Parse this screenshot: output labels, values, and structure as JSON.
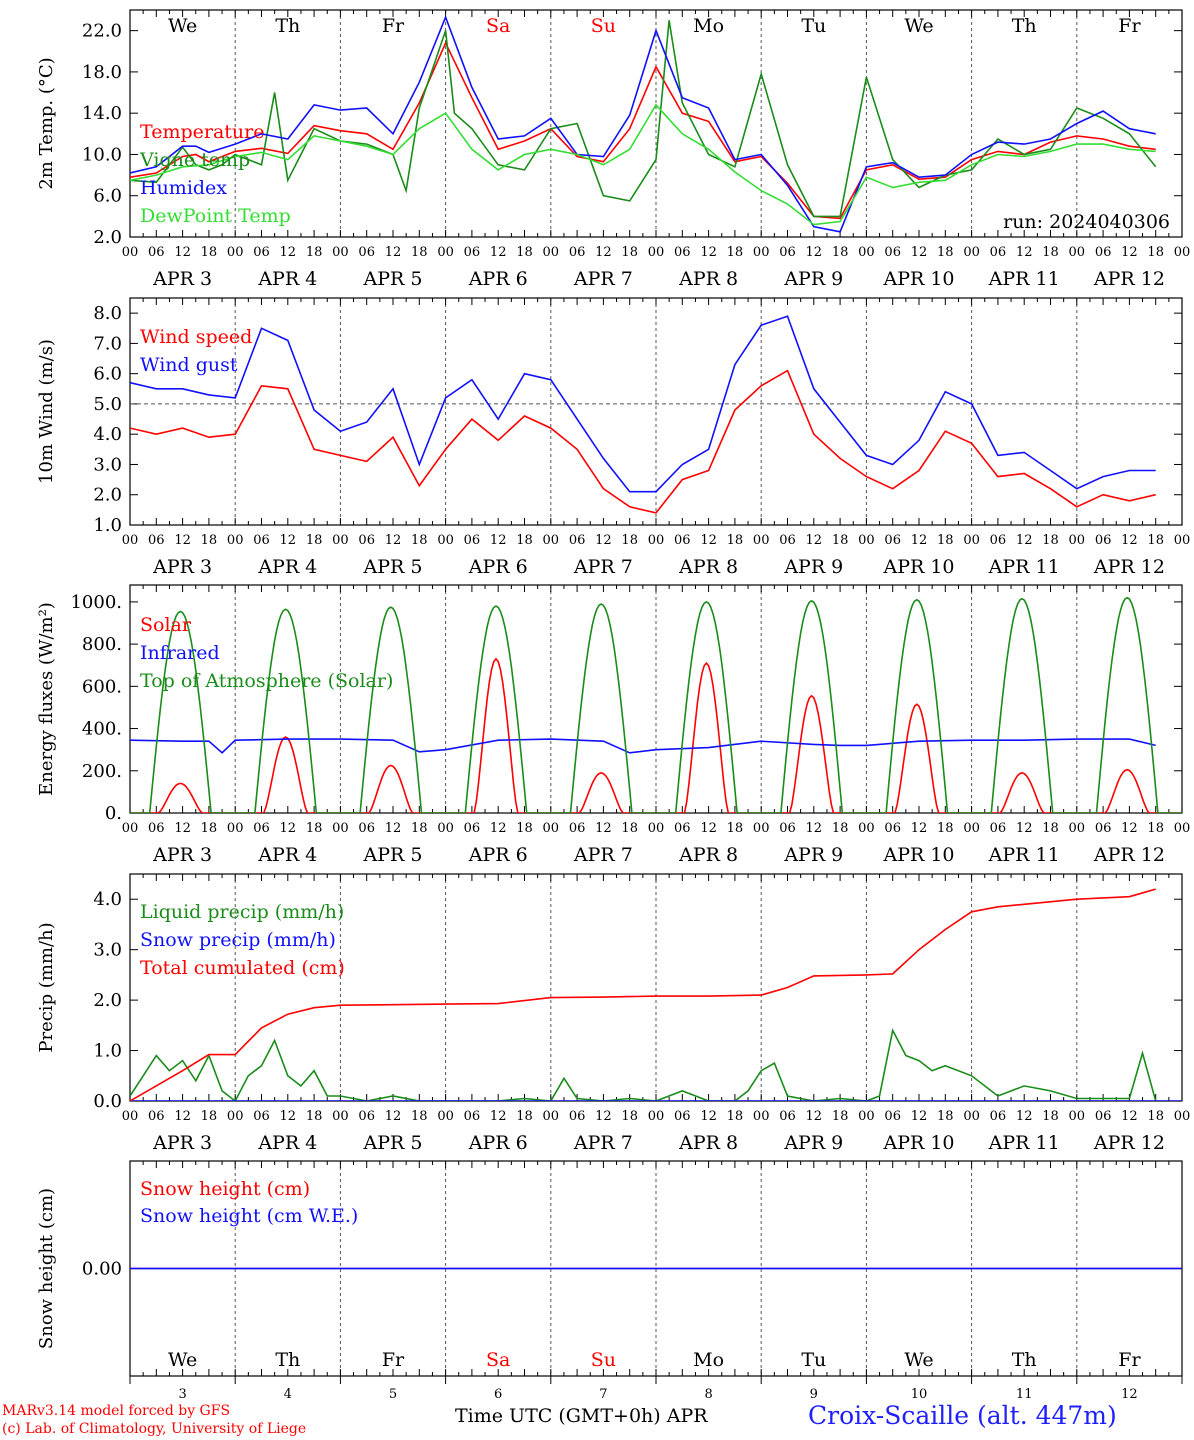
{
  "footer": {
    "model_line": "MARv3.14 model forced by GFS",
    "copyright_line": "(c) Lab. of Climatology, University of Liege",
    "x_axis_title": "Time UTC (GMT+0h) APR",
    "station": "Croix-Scaille (alt. 447m)"
  },
  "days": {
    "weekday_names": [
      "We",
      "Th",
      "Fr",
      "Sa",
      "Su",
      "Mo",
      "Tu",
      "We",
      "Th",
      "Fr"
    ],
    "weekend_color": "#ff0000",
    "weekday_color": "#000000",
    "weekend_indices": [
      3,
      4
    ],
    "date_labels": [
      "APR  3",
      "APR  4",
      "APR  5",
      "APR  6",
      "APR  7",
      "APR  8",
      "APR  9",
      "APR 10",
      "APR 11",
      "APR 12"
    ],
    "bottom_numbers": [
      "3",
      "4",
      "5",
      "6",
      "7",
      "8",
      "9",
      "10",
      "11",
      "12"
    ],
    "hour_ticks": [
      "00",
      "06",
      "12",
      "18"
    ],
    "final_hour_tick": "00"
  },
  "colors": {
    "red": "#ff0000",
    "blue": "#1010ff",
    "dark_green": "#1a8c1a",
    "light_green": "#33dd33",
    "purple": "#800080",
    "grid": "#555555"
  },
  "chart_data": [
    {
      "type": "line",
      "panel": "temperature",
      "ylabel": "2m Temp. (°C)",
      "ylim": [
        2,
        24
      ],
      "yticks": [
        "2.0",
        "6.0",
        "10.0",
        "14.0",
        "18.0",
        "22.0"
      ],
      "annotation": "run: 2024040306",
      "grid": "vertical dotted at day boundaries",
      "x_unit": "hours since 2024-04-03 00 UTC",
      "series": [
        {
          "name": "Temperature",
          "color": "#ff0000",
          "x": [
            0,
            6,
            12,
            15,
            18,
            24,
            30,
            36,
            42,
            48,
            54,
            60,
            66,
            72,
            78,
            84,
            90,
            96,
            102,
            108,
            114,
            120,
            126,
            132,
            138,
            144,
            150,
            156,
            162,
            168,
            174,
            180,
            186,
            192,
            198,
            204,
            210,
            216,
            222,
            228,
            234
          ],
          "values": [
            7.8,
            8.2,
            9.8,
            10.0,
            9.3,
            10.3,
            10.6,
            10.1,
            12.8,
            12.3,
            12.0,
            10.5,
            15.0,
            20.8,
            15.5,
            10.5,
            11.3,
            12.5,
            9.8,
            9.3,
            12.5,
            18.5,
            14.0,
            13.2,
            9.3,
            9.8,
            7.2,
            4.0,
            3.8,
            8.5,
            9.0,
            7.6,
            7.8,
            9.5,
            10.3,
            10.0,
            11.2,
            11.8,
            11.5,
            10.8,
            10.5
          ]
        },
        {
          "name": "Vigne temp",
          "color": "#1a8c1a",
          "x": [
            0,
            6,
            12,
            15,
            18,
            21,
            24,
            30,
            33,
            36,
            39,
            42,
            48,
            54,
            60,
            63,
            66,
            72,
            74,
            78,
            84,
            90,
            96,
            102,
            108,
            114,
            120,
            123,
            126,
            132,
            138,
            144,
            150,
            156,
            162,
            168,
            174,
            180,
            186,
            192,
            198,
            204,
            210,
            216,
            222,
            228,
            234
          ],
          "values": [
            7.5,
            7.3,
            10.7,
            9.0,
            8.5,
            9.0,
            10.0,
            9.0,
            16.0,
            7.5,
            10.0,
            12.5,
            11.3,
            11.0,
            10.0,
            6.5,
            14.5,
            22.0,
            14.0,
            12.5,
            9.0,
            8.5,
            12.5,
            13.0,
            6.0,
            5.5,
            9.5,
            23.0,
            15.0,
            10.0,
            8.8,
            17.8,
            9.0,
            4.0,
            4.0,
            17.5,
            9.5,
            6.8,
            8.0,
            8.5,
            11.5,
            10.0,
            10.5,
            14.5,
            13.5,
            12.0,
            8.8
          ]
        },
        {
          "name": "Humidex",
          "color": "#1010ff",
          "x": [
            0,
            6,
            12,
            15,
            18,
            24,
            30,
            36,
            42,
            48,
            54,
            60,
            66,
            72,
            78,
            84,
            90,
            96,
            102,
            108,
            114,
            120,
            126,
            132,
            138,
            144,
            150,
            156,
            162,
            168,
            174,
            180,
            186,
            192,
            198,
            204,
            210,
            216,
            222,
            228,
            234
          ],
          "values": [
            8.2,
            8.8,
            10.8,
            10.8,
            10.2,
            11.0,
            12.0,
            11.5,
            14.8,
            14.3,
            14.5,
            12.0,
            17.0,
            23.3,
            16.5,
            11.5,
            11.8,
            13.5,
            10.0,
            9.8,
            13.8,
            22.0,
            15.5,
            14.5,
            9.5,
            10.0,
            7.0,
            3.0,
            2.5,
            8.8,
            9.2,
            7.8,
            8.0,
            10.0,
            11.2,
            11.0,
            11.5,
            13.0,
            14.2,
            12.5,
            12.0
          ]
        },
        {
          "name": "DewPoint Temp",
          "color": "#33dd33",
          "x": [
            0,
            6,
            12,
            18,
            24,
            30,
            36,
            42,
            48,
            54,
            60,
            66,
            72,
            78,
            84,
            90,
            96,
            102,
            108,
            114,
            120,
            126,
            132,
            138,
            144,
            150,
            156,
            162,
            168,
            174,
            180,
            186,
            192,
            198,
            204,
            210,
            216,
            222,
            228,
            234
          ],
          "values": [
            7.5,
            8.0,
            8.8,
            9.0,
            9.8,
            10.2,
            9.5,
            11.8,
            11.3,
            10.8,
            10.0,
            12.5,
            14.0,
            10.5,
            8.5,
            10.0,
            10.5,
            10.0,
            9.0,
            10.5,
            14.8,
            12.0,
            10.5,
            8.3,
            6.5,
            5.2,
            3.2,
            3.5,
            7.8,
            6.8,
            7.3,
            7.5,
            9.0,
            10.0,
            9.8,
            10.3,
            11.0,
            11.0,
            10.5,
            10.3
          ]
        }
      ]
    },
    {
      "type": "line",
      "panel": "wind",
      "ylabel": "10m Wind (m/s)",
      "ylim": [
        1,
        8.5
      ],
      "yticks": [
        "1.0",
        "2.0",
        "3.0",
        "4.0",
        "5.0",
        "6.0",
        "7.0",
        "8.0"
      ],
      "reference_line": 5.0,
      "x_unit": "hours since 2024-04-03 00 UTC",
      "series": [
        {
          "name": "Wind speed",
          "color": "#ff0000",
          "x": [
            0,
            6,
            12,
            18,
            24,
            30,
            36,
            42,
            48,
            54,
            60,
            66,
            72,
            78,
            84,
            90,
            96,
            102,
            108,
            114,
            120,
            126,
            132,
            138,
            144,
            150,
            156,
            162,
            168,
            174,
            180,
            186,
            192,
            198,
            204,
            210,
            216,
            222,
            228,
            234
          ],
          "values": [
            4.2,
            4.0,
            4.2,
            3.9,
            4.0,
            5.6,
            5.5,
            3.5,
            3.3,
            3.1,
            3.9,
            2.3,
            3.5,
            4.5,
            3.8,
            4.6,
            4.2,
            3.5,
            2.2,
            1.6,
            1.4,
            2.5,
            2.8,
            4.8,
            5.6,
            6.1,
            4.0,
            3.2,
            2.6,
            2.2,
            2.8,
            4.1,
            3.7,
            2.6,
            2.7,
            2.2,
            1.6,
            2.0,
            1.8,
            2.0
          ]
        },
        {
          "name": "Wind gust",
          "color": "#1010ff",
          "x": [
            0,
            6,
            12,
            18,
            24,
            30,
            36,
            42,
            48,
            54,
            60,
            66,
            72,
            78,
            84,
            90,
            96,
            102,
            108,
            114,
            120,
            126,
            132,
            138,
            144,
            150,
            156,
            162,
            168,
            174,
            180,
            186,
            192,
            198,
            204,
            210,
            216,
            222,
            228,
            234
          ],
          "values": [
            5.7,
            5.5,
            5.5,
            5.3,
            5.2,
            7.5,
            7.1,
            4.8,
            4.1,
            4.4,
            5.5,
            3.0,
            5.2,
            5.8,
            4.5,
            6.0,
            5.8,
            4.5,
            3.2,
            2.1,
            2.1,
            3.0,
            3.5,
            6.3,
            7.6,
            7.9,
            5.5,
            4.4,
            3.3,
            3.0,
            3.8,
            5.4,
            5.0,
            3.3,
            3.4,
            2.8,
            2.2,
            2.6,
            2.8,
            2.8
          ]
        }
      ]
    },
    {
      "type": "line",
      "panel": "energy",
      "ylabel": "Energy fluxes (W/m²)",
      "ylim": [
        0,
        1080
      ],
      "yticks": [
        "0.",
        "200.",
        "400.",
        "600.",
        "800.",
        "1000."
      ],
      "x_unit": "hours since 2024-04-03 00 UTC",
      "series": [
        {
          "name": "Solar",
          "color": "#ff0000",
          "daily_peaks": [
            140,
            360,
            225,
            730,
            190,
            710,
            555,
            515,
            190,
            205
          ]
        },
        {
          "name": "Infrared",
          "color": "#1010ff",
          "x": [
            0,
            12,
            18,
            21,
            24,
            36,
            48,
            60,
            66,
            72,
            84,
            96,
            108,
            114,
            120,
            132,
            144,
            156,
            162,
            168,
            180,
            192,
            204,
            216,
            228,
            234
          ],
          "values": [
            345,
            340,
            340,
            285,
            345,
            350,
            350,
            345,
            290,
            300,
            345,
            350,
            340,
            285,
            300,
            310,
            340,
            325,
            320,
            320,
            340,
            345,
            345,
            350,
            350,
            320
          ]
        },
        {
          "name": "Top of Atmosphere (Solar)",
          "color": "#1a8c1a",
          "daily_peaks": [
            955,
            965,
            975,
            980,
            990,
            1000,
            1005,
            1010,
            1015,
            1020
          ]
        }
      ]
    },
    {
      "type": "line",
      "panel": "precip",
      "ylabel": "Precip (mm/h)",
      "ylim": [
        0,
        4.5
      ],
      "yticks": [
        "0.0",
        "1.0",
        "2.0",
        "3.0",
        "4.0"
      ],
      "x_unit": "hours since 2024-04-03 00 UTC",
      "series": [
        {
          "name": "Liquid precip (mm/h)",
          "color": "#1a8c1a",
          "x": [
            0,
            3,
            6,
            9,
            12,
            15,
            18,
            21,
            24,
            27,
            30,
            33,
            36,
            39,
            42,
            45,
            48,
            51,
            54,
            60,
            66,
            72,
            78,
            84,
            90,
            96,
            99,
            102,
            108,
            114,
            120,
            126,
            132,
            138,
            141,
            144,
            147,
            150,
            156,
            162,
            168,
            171,
            174,
            177,
            180,
            183,
            186,
            192,
            198,
            204,
            210,
            216,
            222,
            228,
            231,
            234
          ],
          "values": [
            0.1,
            0.5,
            0.9,
            0.6,
            0.8,
            0.4,
            0.9,
            0.2,
            0.0,
            0.5,
            0.7,
            1.2,
            0.5,
            0.3,
            0.6,
            0.1,
            0.1,
            0.05,
            0.0,
            0.1,
            0.0,
            0.0,
            0.0,
            0.0,
            0.05,
            0.0,
            0.45,
            0.05,
            0.0,
            0.05,
            0.0,
            0.2,
            0.0,
            0.0,
            0.2,
            0.6,
            0.75,
            0.1,
            0.0,
            0.05,
            0.0,
            0.1,
            1.4,
            0.9,
            0.8,
            0.6,
            0.7,
            0.5,
            0.1,
            0.3,
            0.2,
            0.05,
            0.05,
            0.05,
            0.95,
            0.0
          ]
        },
        {
          "name": "Snow precip (mm/h)",
          "color": "#1010ff",
          "x": [
            0,
            234
          ],
          "values": [
            0,
            0
          ]
        },
        {
          "name": "Total cumulated (cm)",
          "color": "#ff0000",
          "x": [
            0,
            12,
            18,
            24,
            30,
            36,
            42,
            48,
            60,
            72,
            84,
            96,
            108,
            120,
            132,
            144,
            150,
            156,
            168,
            174,
            180,
            186,
            192,
            198,
            204,
            216,
            228,
            234
          ],
          "values": [
            0.0,
            0.6,
            0.92,
            0.92,
            1.45,
            1.72,
            1.85,
            1.9,
            1.91,
            1.92,
            1.93,
            2.05,
            2.06,
            2.08,
            2.08,
            2.1,
            2.25,
            2.48,
            2.5,
            2.52,
            3.0,
            3.4,
            3.75,
            3.85,
            3.9,
            4.0,
            4.05,
            4.2
          ]
        }
      ]
    },
    {
      "type": "line",
      "panel": "snow",
      "ylabel": "Snow height (cm)",
      "yticks": [
        "0.00"
      ],
      "x_unit": "hours since 2024-04-03 00 UTC",
      "series": [
        {
          "name": "Snow height (cm)",
          "color": "#ff0000",
          "x": [
            0,
            234
          ],
          "values": [
            0,
            0
          ]
        },
        {
          "name": "Snow height (cm W.E.)",
          "color": "#1010ff",
          "x": [
            0,
            234
          ],
          "values": [
            0,
            0
          ]
        }
      ]
    }
  ]
}
